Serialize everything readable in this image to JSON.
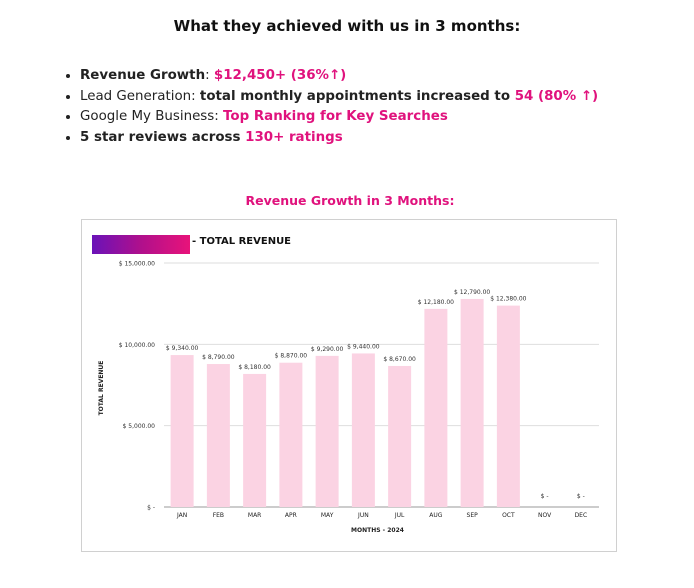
{
  "heading": "What they achieved with us in 3 months:",
  "highlights": [
    {
      "label": "Revenue Growth",
      "sep": ": ",
      "value": "$12,450+ (36%↑)"
    },
    {
      "label": "Lead Generation",
      "sep": ": ",
      "text": "total monthly appointments increased to ",
      "value": "54 (80% ↑)"
    },
    {
      "label": "Google My Business",
      "sep": ": ",
      "value": "Top Ranking for Key Searches"
    },
    {
      "text": "5 star reviews across ",
      "value": "130+ ratings"
    }
  ],
  "chart_title": "Revenue Growth in 3 Months:",
  "colors": {
    "accent": "#e0127d",
    "bar": "#fbd3e3",
    "legend_start": "#6a12b8",
    "legend_end": "#e8137a"
  },
  "chart_data": {
    "type": "bar",
    "legend": "- TOTAL REVENUE",
    "categories": [
      "JAN",
      "FEB",
      "MAR",
      "APR",
      "MAY",
      "JUN",
      "JUL",
      "AUG",
      "SEP",
      "OCT",
      "NOV",
      "DEC"
    ],
    "series": [
      {
        "name": "TOTAL REVENUE",
        "values": [
          9340,
          8790,
          8180,
          8870,
          9290,
          9440,
          8670,
          12180,
          12790,
          12380,
          0,
          0
        ]
      }
    ],
    "data_labels": [
      "$ 9,340.00",
      "$ 8,790.00",
      "$ 8,180.00",
      "$ 8,870.00",
      "$ 9,290.00",
      "$ 9,440.00",
      "$ 8,670.00",
      "$ 12,180.00",
      "$ 12,790.00",
      "$ 12,380.00",
      "$ -",
      "$ -"
    ],
    "y_ticks": [
      0,
      5000,
      10000,
      15000
    ],
    "y_tick_labels": [
      "$ -",
      "$ 5,000.00",
      "$ 10,000.00",
      "$ 15,000.00"
    ],
    "ylim": [
      0,
      15000
    ],
    "xlabel": "MONTHS - 2024",
    "ylabel": "TOTAL REVENUE",
    "grid": true,
    "legend_position": "top-left"
  }
}
